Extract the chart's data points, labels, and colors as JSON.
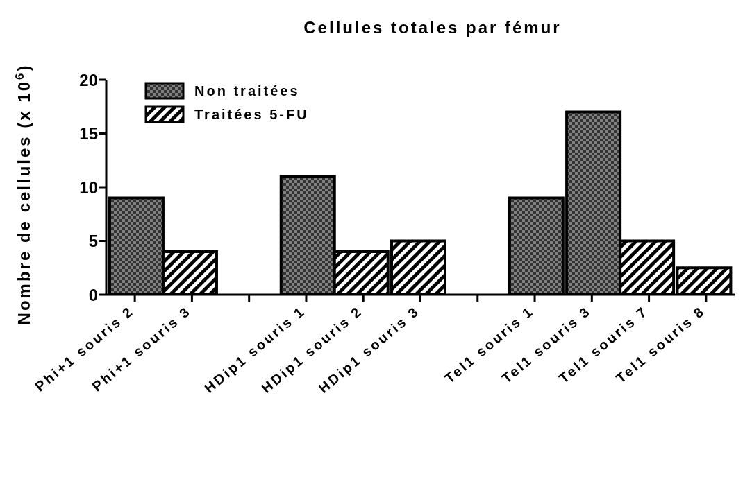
{
  "chart_data": {
    "type": "bar",
    "title": "Cellules totales par fémur",
    "ylabel": "Nombre de cellules (x 10$^{6}$)",
    "categories": [
      "Phi+1 souris 2",
      "Phi+1 souris 3",
      null,
      "HDip1 souris 1",
      "HDip1 souris 2",
      "HDip1 souris 3",
      null,
      "Tel1 souris 1",
      "Tel1 souris 3",
      "Tel1 souris 7",
      "Tel1 souris 8"
    ],
    "series": [
      {
        "name": "Non traitées",
        "color": "#808080",
        "values": [
          9,
          null,
          null,
          11,
          null,
          null,
          null,
          9,
          17,
          null,
          null
        ]
      },
      {
        "name": "Traitées 5-FU",
        "color": "#000000",
        "values": [
          null,
          4,
          null,
          null,
          4,
          5,
          null,
          null,
          null,
          5,
          2.5
        ]
      }
    ],
    "ylim": [
      0,
      20
    ],
    "yticks": [
      0,
      5,
      10,
      15,
      20
    ],
    "grid": false,
    "legend": "top left"
  }
}
